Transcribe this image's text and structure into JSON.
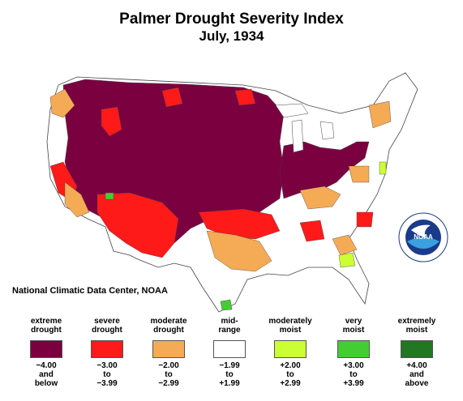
{
  "title": "Palmer Drought Severity Index",
  "subtitle": "July, 1934",
  "credit": "National Climatic Data Center, NOAA",
  "logo_text": "NOAA",
  "colors": {
    "extreme": "#7a0040",
    "severe": "#ff1a1a",
    "moderate": "#f5aa55",
    "mid": "#ffffff",
    "mod_moist": "#ccff33",
    "very_moist": "#44cc33",
    "ext_moist": "#227722",
    "border": "#444444"
  },
  "legend": [
    {
      "label_1": "extreme",
      "label_2": "drought",
      "color": "#7a0040",
      "range_1": "−4.00",
      "range_2": "and",
      "range_3": "below"
    },
    {
      "label_1": "severe",
      "label_2": "drought",
      "color": "#ff1a1a",
      "range_1": "−3.00",
      "range_2": "to",
      "range_3": "−3.99"
    },
    {
      "label_1": "moderate",
      "label_2": "drought",
      "color": "#f5aa55",
      "range_1": "−2.00",
      "range_2": "to",
      "range_3": "−2.99"
    },
    {
      "label_1": "mid-",
      "label_2": "range",
      "color": "#ffffff",
      "range_1": "−1.99",
      "range_2": "to",
      "range_3": "+1.99"
    },
    {
      "label_1": "moderately",
      "label_2": "moist",
      "color": "#ccff33",
      "range_1": "+2.00",
      "range_2": "to",
      "range_3": "+2.99"
    },
    {
      "label_1": "very",
      "label_2": "moist",
      "color": "#44cc33",
      "range_1": "+3.00",
      "range_2": "to",
      "range_3": "+3.99"
    },
    {
      "label_1": "extremely",
      "label_2": "moist",
      "color": "#227722",
      "range_1": "+4.00",
      "range_2": "and",
      "range_3": "above"
    }
  ]
}
